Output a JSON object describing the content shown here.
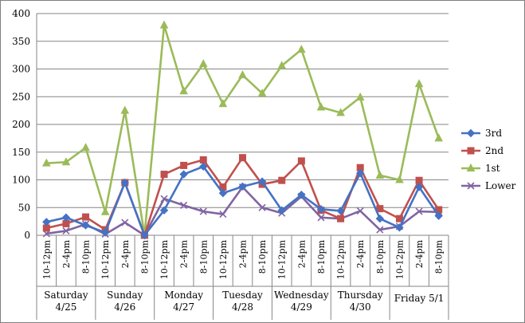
{
  "chart_data": {
    "type": "line",
    "title": "",
    "xlabel": "",
    "ylabel": "",
    "ylim": [
      0,
      400
    ],
    "yticks": [
      0,
      50,
      100,
      150,
      200,
      250,
      300,
      350,
      400
    ],
    "grid": "horizontal",
    "legend_position": "right",
    "groups": [
      {
        "label": [
          "Saturday",
          "4/25"
        ],
        "slots": [
          "10-12pm",
          "2-4pm",
          "8-10pm"
        ]
      },
      {
        "label": [
          "Sunday",
          "4/26"
        ],
        "slots": [
          "10-12pm",
          "2-4pm",
          "8-10pm"
        ]
      },
      {
        "label": [
          "Monday",
          "4/27"
        ],
        "slots": [
          "10-12pm",
          "2-4pm",
          "8-10pm"
        ]
      },
      {
        "label": [
          "Tuesday",
          "4/28"
        ],
        "slots": [
          "10-12pm",
          "2-4pm",
          "8-10pm"
        ]
      },
      {
        "label": [
          "Wednesday",
          "4/29"
        ],
        "slots": [
          "10-12pm",
          "2-4pm",
          "8-10pm"
        ]
      },
      {
        "label": [
          "Thursday",
          "4/30"
        ],
        "slots": [
          "10-12pm",
          "2-4pm",
          "8-10pm"
        ]
      },
      {
        "label": [
          "Friday 5/1"
        ],
        "slots": [
          "10-12pm",
          "2-4pm",
          "8-10pm"
        ]
      }
    ],
    "series": [
      {
        "name": "3rd",
        "color": "#4472c4",
        "marker": "diamond",
        "values": [
          24,
          32,
          18,
          5,
          95,
          0,
          45,
          110,
          124,
          76,
          88,
          97,
          45,
          73,
          47,
          44,
          112,
          30,
          14,
          87,
          35
        ]
      },
      {
        "name": "2nd",
        "color": "#c0504d",
        "marker": "square",
        "values": [
          13,
          21,
          33,
          10,
          95,
          0,
          110,
          126,
          136,
          87,
          140,
          92,
          99,
          134,
          45,
          30,
          122,
          48,
          30,
          99,
          46
        ]
      },
      {
        "name": "1st",
        "color": "#9bbb59",
        "marker": "triangle",
        "values": [
          130,
          132,
          158,
          42,
          225,
          0,
          379,
          260,
          309,
          237,
          289,
          256,
          306,
          335,
          231,
          221,
          249,
          108,
          100,
          273,
          175
        ]
      },
      {
        "name": "Lower",
        "color": "#8064a2",
        "marker": "x",
        "values": [
          3,
          8,
          20,
          2,
          23,
          0,
          66,
          54,
          43,
          38,
          87,
          50,
          40,
          70,
          32,
          30,
          44,
          10,
          16,
          43,
          42
        ]
      }
    ]
  }
}
